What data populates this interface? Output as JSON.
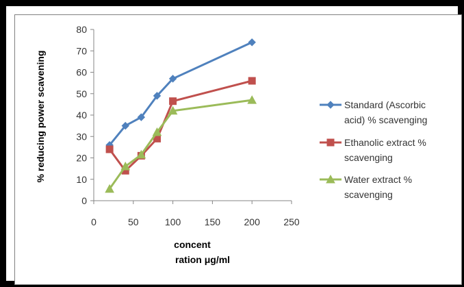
{
  "chart_data": {
    "type": "line",
    "title": "",
    "xlabel_lines": [
      "concent",
      "ration μg/ml"
    ],
    "ylabel": "% reducing power scavening",
    "xlim": [
      0,
      250
    ],
    "ylim": [
      0,
      80
    ],
    "x_ticks": [
      0,
      50,
      100,
      150,
      200,
      250
    ],
    "y_ticks": [
      0,
      10,
      20,
      30,
      40,
      50,
      60,
      70,
      80
    ],
    "grid": false,
    "legend_position": "right",
    "series": [
      {
        "name": "Standard (Ascorbic acid) % scavenging",
        "legend_lines": [
          "Standard (Ascorbic",
          "acid) % scavenging"
        ],
        "color": "#4f81bd",
        "marker": "diamond",
        "x": [
          20,
          40,
          60,
          80,
          100,
          200
        ],
        "y": [
          26,
          35,
          39,
          49,
          57,
          74
        ]
      },
      {
        "name": "Ethanolic extract % scavenging",
        "legend_lines": [
          "Ethanolic extract %",
          "scavenging"
        ],
        "color": "#c0504d",
        "marker": "square",
        "x": [
          20,
          40,
          60,
          80,
          100,
          200
        ],
        "y": [
          24,
          14,
          21,
          29,
          46.5,
          56
        ]
      },
      {
        "name": "Water extract % scavenging",
        "legend_lines": [
          "Water extract %",
          "scavenging"
        ],
        "color": "#9bbb59",
        "marker": "triangle",
        "x": [
          20,
          40,
          60,
          80,
          100,
          200
        ],
        "y": [
          5.5,
          16,
          21.5,
          32,
          42,
          47
        ]
      }
    ]
  }
}
